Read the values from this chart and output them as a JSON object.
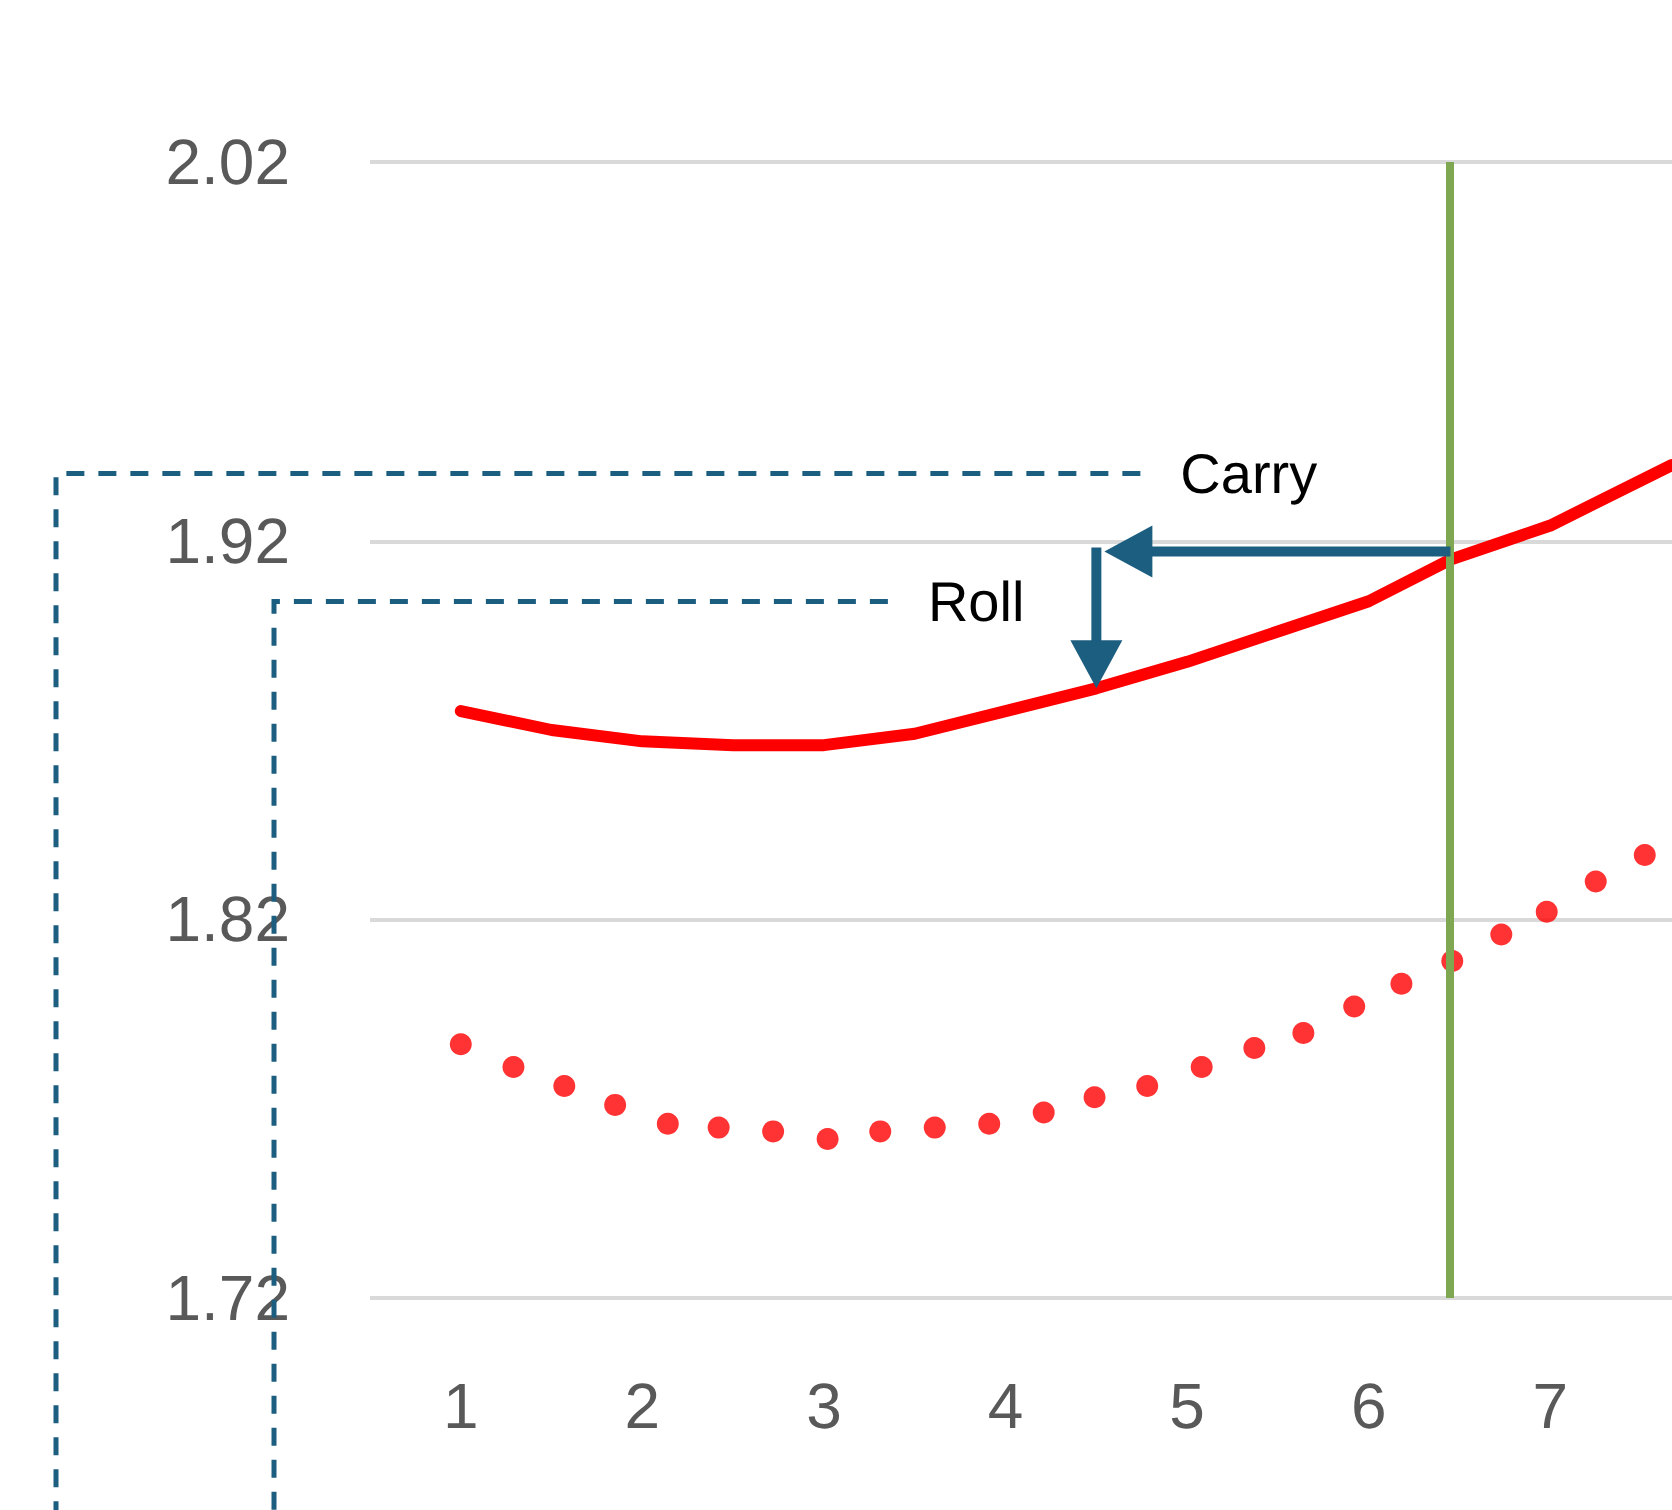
{
  "chart_data": {
    "type": "line",
    "annotations": [
      {
        "text": "Carry",
        "x": 6.45,
        "y": 1.915
      },
      {
        "text": "Roll",
        "x": 4.5,
        "y": 1.881
      }
    ],
    "xlim": [
      0.5,
      7.67
    ],
    "xticks": [
      1,
      2,
      3,
      4,
      5,
      6,
      7
    ],
    "ylim": [
      1.72,
      2.02
    ],
    "yticks": [
      1.72,
      1.82,
      1.92,
      2.02
    ],
    "grid": "y",
    "series": [
      {
        "color": "#ff0000",
        "marker": "none",
        "line_style": "solid",
        "x": [
          1,
          1.5,
          2,
          2.5,
          3,
          3.5,
          4,
          4.5,
          5,
          5.5,
          6,
          6.45,
          7,
          7.67
        ],
        "values": [
          1.875,
          1.87,
          1.867,
          1.866,
          1.866,
          1.869,
          1.875,
          1.881,
          1.888,
          1.896,
          1.904,
          1.915,
          1.924,
          1.94
        ]
      },
      {
        "type": "scatter",
        "color": "#ff0000",
        "marker": "circle",
        "x": [
          1,
          1.29,
          1.57,
          1.85,
          2.14,
          2.42,
          2.72,
          3.02,
          3.31,
          3.61,
          3.91,
          4.21,
          4.49,
          4.78,
          5.08,
          5.37,
          5.64,
          5.92,
          6.18,
          6.46,
          6.73,
          6.98,
          7.25,
          7.52
        ],
        "values": [
          1.787,
          1.781,
          1.776,
          1.771,
          1.766,
          1.765,
          1.764,
          1.762,
          1.764,
          1.765,
          1.766,
          1.769,
          1.773,
          1.776,
          1.781,
          1.786,
          1.79,
          1.797,
          1.803,
          1.809,
          1.816,
          1.822,
          1.83,
          1.837
        ]
      }
    ],
    "ref_lines": [
      {
        "axis": "x",
        "value": 6.45,
        "color": "#7fa650"
      }
    ]
  }
}
